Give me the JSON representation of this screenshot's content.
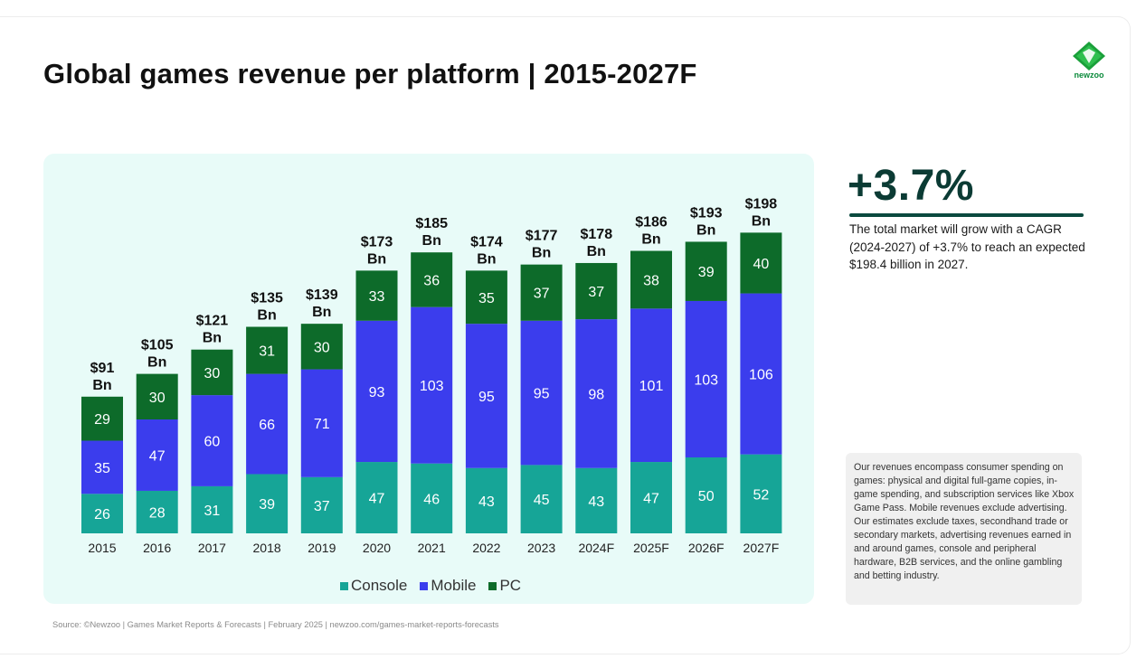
{
  "title": "Global games revenue per platform | 2015-2027F",
  "logo": {
    "text": "newzoo"
  },
  "chart_data": {
    "type": "bar",
    "stacked": true,
    "categories": [
      "2015",
      "2016",
      "2017",
      "2018",
      "2019",
      "2020",
      "2021",
      "2022",
      "2023",
      "2024F",
      "2025F",
      "2026F",
      "2027F"
    ],
    "series": [
      {
        "name": "Console",
        "color": "#16a597",
        "values": [
          26,
          28,
          31,
          39,
          37,
          47,
          46,
          43,
          45,
          43,
          47,
          50,
          52
        ]
      },
      {
        "name": "Mobile",
        "color": "#3b3ded",
        "values": [
          35,
          47,
          60,
          66,
          71,
          93,
          103,
          95,
          95,
          98,
          101,
          103,
          106
        ]
      },
      {
        "name": "PC",
        "color": "#0d6b2a",
        "values": [
          29,
          30,
          30,
          31,
          30,
          33,
          36,
          35,
          37,
          37,
          38,
          39,
          40
        ]
      }
    ],
    "totals": [
      "$91",
      "$105",
      "$121",
      "$135",
      "$139",
      "$173",
      "$185",
      "$174",
      "$177",
      "$178",
      "$186",
      "$193",
      "$198"
    ],
    "total_unit": "Bn",
    "legend_position": "bottom",
    "background": "#e8fbf8"
  },
  "cagr": {
    "value": "+3.7%",
    "text": "The total market will grow with a CAGR (2024-2027) of +3.7% to reach an expected $198.4 billion in 2027."
  },
  "note": "Our revenues encompass consumer spending on games: physical and digital full-game copies, in-game spending, and subscription services like Xbox Game Pass. Mobile revenues exclude advertising. Our estimates exclude taxes, secondhand trade or secondary markets, advertising revenues earned in and around games, console and peripheral hardware, B2B services, and the online gambling and betting industry.",
  "source": "Source: ©Newzoo | Games Market Reports & Forecasts | February 2025 | newzoo.com/games-market-reports-forecasts"
}
